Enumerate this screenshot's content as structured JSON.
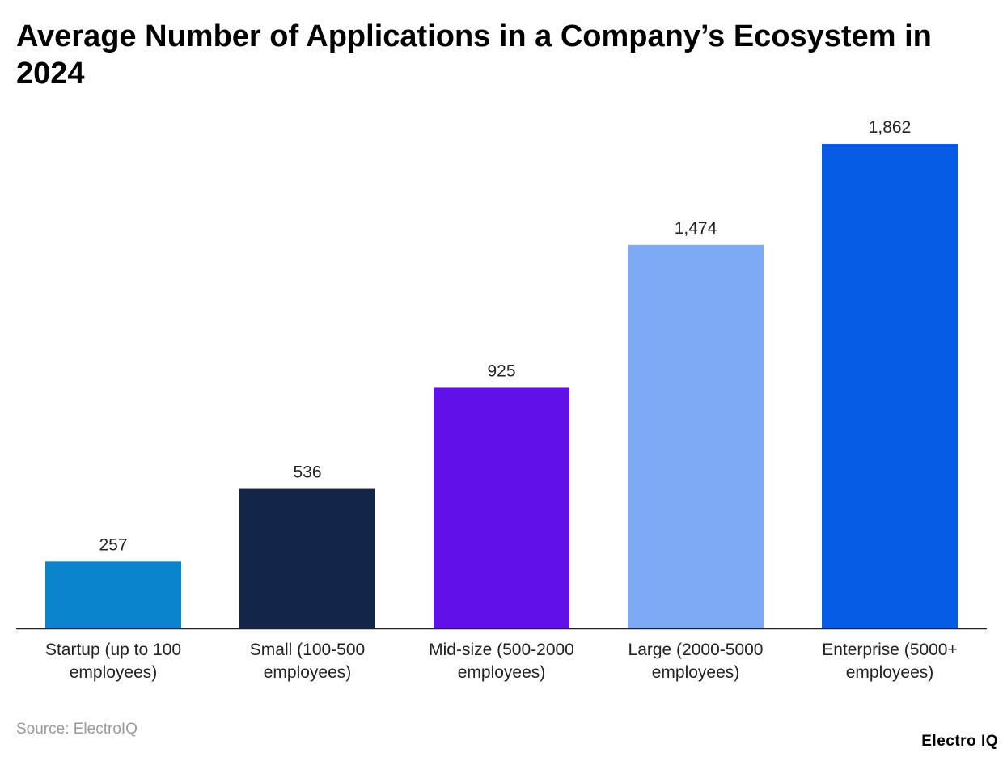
{
  "chart_data": {
    "type": "bar",
    "title": "Average Number of Applications in a Company’s Ecosystem in 2024",
    "categories": [
      [
        "Startup (up to 100",
        "employees)"
      ],
      [
        "Small (100-500",
        "employees)"
      ],
      [
        "Mid-size (500-2000",
        "employees)"
      ],
      [
        "Large (2000-5000",
        "employees)"
      ],
      [
        "Enterprise (5000+",
        "employees)"
      ]
    ],
    "values": [
      257,
      536,
      925,
      1474,
      1862
    ],
    "data_labels": [
      "257",
      "536",
      "925",
      "1,474",
      "1,862"
    ],
    "colors": [
      "#0a84cc",
      "#14254a",
      "#6010e8",
      "#7eaaf5",
      "#075ce5"
    ],
    "ylim": [
      0,
      1862
    ],
    "grid": false,
    "xlabel": "",
    "ylabel": ""
  },
  "source": "Source: ElectroIQ",
  "logo": "Electro IQ"
}
